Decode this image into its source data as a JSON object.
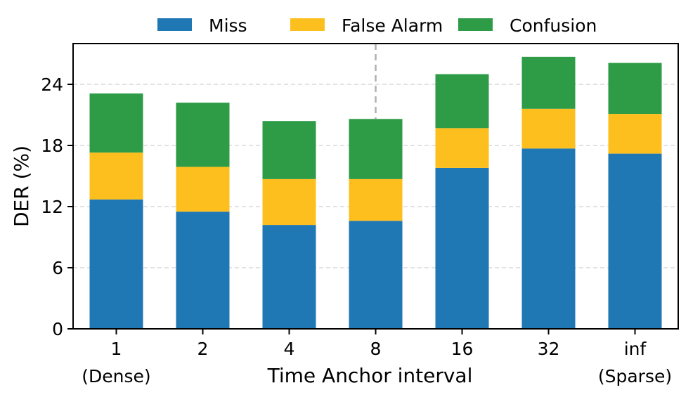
{
  "chart_data": {
    "type": "bar",
    "stacked": true,
    "categories": [
      "1",
      "2",
      "4",
      "8",
      "16",
      "32",
      "inf"
    ],
    "category_sublabels": [
      "(Dense)",
      "",
      "",
      "",
      "",
      "",
      "(Sparse)"
    ],
    "series": [
      {
        "name": "Miss",
        "color": "#1f77b4",
        "values": [
          12.7,
          11.5,
          10.2,
          10.6,
          15.8,
          17.7,
          17.2
        ]
      },
      {
        "name": "False Alarm",
        "color": "#fdbf1e",
        "values": [
          4.6,
          4.4,
          4.5,
          4.1,
          3.9,
          3.9,
          3.9
        ]
      },
      {
        "name": "Confusion",
        "color": "#2e9b47",
        "values": [
          5.8,
          6.3,
          5.7,
          5.9,
          5.3,
          5.1,
          5.0
        ]
      }
    ],
    "xlabel": "Time Anchor interval",
    "ylabel": "DER (%)",
    "ylim": [
      0,
      28
    ],
    "yticks": [
      0,
      6,
      12,
      18,
      24
    ],
    "grid": "horizontal dashed",
    "legend": "top-center",
    "reference_line": {
      "between_category": "8",
      "style": "dashed gray"
    }
  }
}
